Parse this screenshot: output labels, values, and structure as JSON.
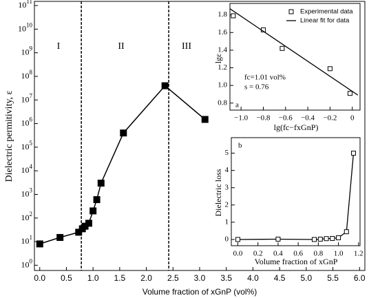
{
  "chart_data": [
    {
      "type": "scatter",
      "x_label": "Volume fraction of xGnP (vol%)",
      "y_label": "Dielectric permitivity, ε",
      "xlim": [
        -0.1,
        6.1
      ],
      "ylim": [
        0.6,
        150000000000
      ],
      "ylog": true,
      "xticks": [
        {
          "value": 0,
          "label": "0.0"
        },
        0.5,
        {
          "value": 1,
          "label": "1.0"
        },
        1.5,
        {
          "value": 2,
          "label": "2.0"
        },
        2.5,
        {
          "value": 3,
          "label": "3.0"
        },
        3.5,
        {
          "value": 4,
          "label": "4.0"
        },
        4.5,
        {
          "value": 5,
          "label": "5.0"
        },
        5.5,
        {
          "value": 6,
          "label": "6.0"
        }
      ],
      "yticks": [
        {
          "value": 1,
          "label": "10",
          "exponent": "0"
        },
        {
          "value": 10,
          "label": "10",
          "exponent": "1"
        },
        {
          "value": 100,
          "label": "10",
          "exponent": "2"
        },
        {
          "value": 1000,
          "label": "10",
          "exponent": "3"
        },
        {
          "value": 10000,
          "label": "10",
          "exponent": "4"
        },
        {
          "value": 100000,
          "label": "10",
          "exponent": "5"
        },
        {
          "value": 1000000,
          "label": "10",
          "exponent": "6"
        },
        {
          "value": 10000000,
          "label": "10",
          "exponent": "7"
        },
        {
          "value": 100000000,
          "label": "10",
          "exponent": "8"
        },
        {
          "value": 1000000000,
          "label": "10",
          "exponent": "9"
        },
        {
          "value": 10000000000,
          "label": "10",
          "exponent": "10"
        },
        {
          "value": 100000000000,
          "label": "10",
          "exponent": "11"
        }
      ],
      "vlines": [
        0.78,
        2.42
      ],
      "annotations": [
        "I",
        "II",
        "III"
      ],
      "series": [
        {
          "color": "#000000",
          "marker": "square",
          "marker_fill": "#000000",
          "line": true,
          "x": [
            0.0,
            0.38,
            0.73,
            0.8,
            0.85,
            0.92,
            1.0,
            1.07,
            1.15,
            1.57,
            2.35,
            3.1
          ],
          "values": [
            8,
            15,
            25,
            35,
            45,
            60,
            200,
            600,
            3000,
            400000,
            40000000,
            1500000
          ]
        }
      ]
    },
    {
      "type": "scatter",
      "x_label": "lg(fc−fxGnP)",
      "y_label": "lgε",
      "xlim": [
        -1.1,
        0.07
      ],
      "ylim": [
        0.72,
        1.93
      ],
      "xticks": [
        {
          "value": -1,
          "label": "−1.0"
        },
        {
          "value": -0.8,
          "label": "−0.8"
        },
        {
          "value": -0.6,
          "label": "−0.6"
        },
        {
          "value": -0.4,
          "label": "−0.4"
        },
        {
          "value": -0.2,
          "label": "−0.2"
        },
        0
      ],
      "yticks": [
        {
          "value": 0.8,
          "label": "0.8"
        },
        {
          "value": 1,
          "label": "1.0"
        },
        1.2,
        1.4,
        1.6,
        1.8
      ],
      "annotations": [
        "fc=1.01 vol%",
        "s = 0.76",
        "a"
      ],
      "legend": "top-right",
      "series": [
        {
          "name": "Experimental data",
          "color": "#000000",
          "marker": "square",
          "marker_fill": "#ffffff",
          "line": false,
          "x": [
            -1.07,
            -0.8,
            -0.63,
            -0.2,
            -0.02
          ],
          "values": [
            1.79,
            1.63,
            1.42,
            1.19,
            0.91
          ]
        },
        {
          "name": "Linear fit for data",
          "color": "#000000",
          "marker": null,
          "line": true,
          "x": [
            -1.1,
            0.05
          ],
          "values": [
            1.87,
            0.89
          ]
        }
      ]
    },
    {
      "type": "scatter",
      "x_label": "Volume fraction of xGnP",
      "y_label": "Dielectric loss",
      "xlim": [
        -0.065,
        1.215
      ],
      "ylim": [
        -0.36,
        5.9
      ],
      "xticks": [
        {
          "value": 0,
          "label": "0.0"
        },
        0.2,
        0.4,
        0.6,
        0.8,
        {
          "value": 1,
          "label": "1.0"
        },
        1.2
      ],
      "yticks": [
        0,
        1,
        2,
        3,
        4,
        5
      ],
      "annotations": [
        "b"
      ],
      "series": [
        {
          "color": "#000000",
          "marker": "square",
          "marker_fill": "#ffffff",
          "line": true,
          "x": [
            0.0,
            0.4,
            0.76,
            0.82,
            0.88,
            0.94,
            1.0,
            1.08,
            1.15
          ],
          "values": [
            0,
            0.02,
            0,
            0.02,
            0.05,
            0.06,
            0.1,
            0.45,
            5.0
          ]
        }
      ]
    }
  ]
}
